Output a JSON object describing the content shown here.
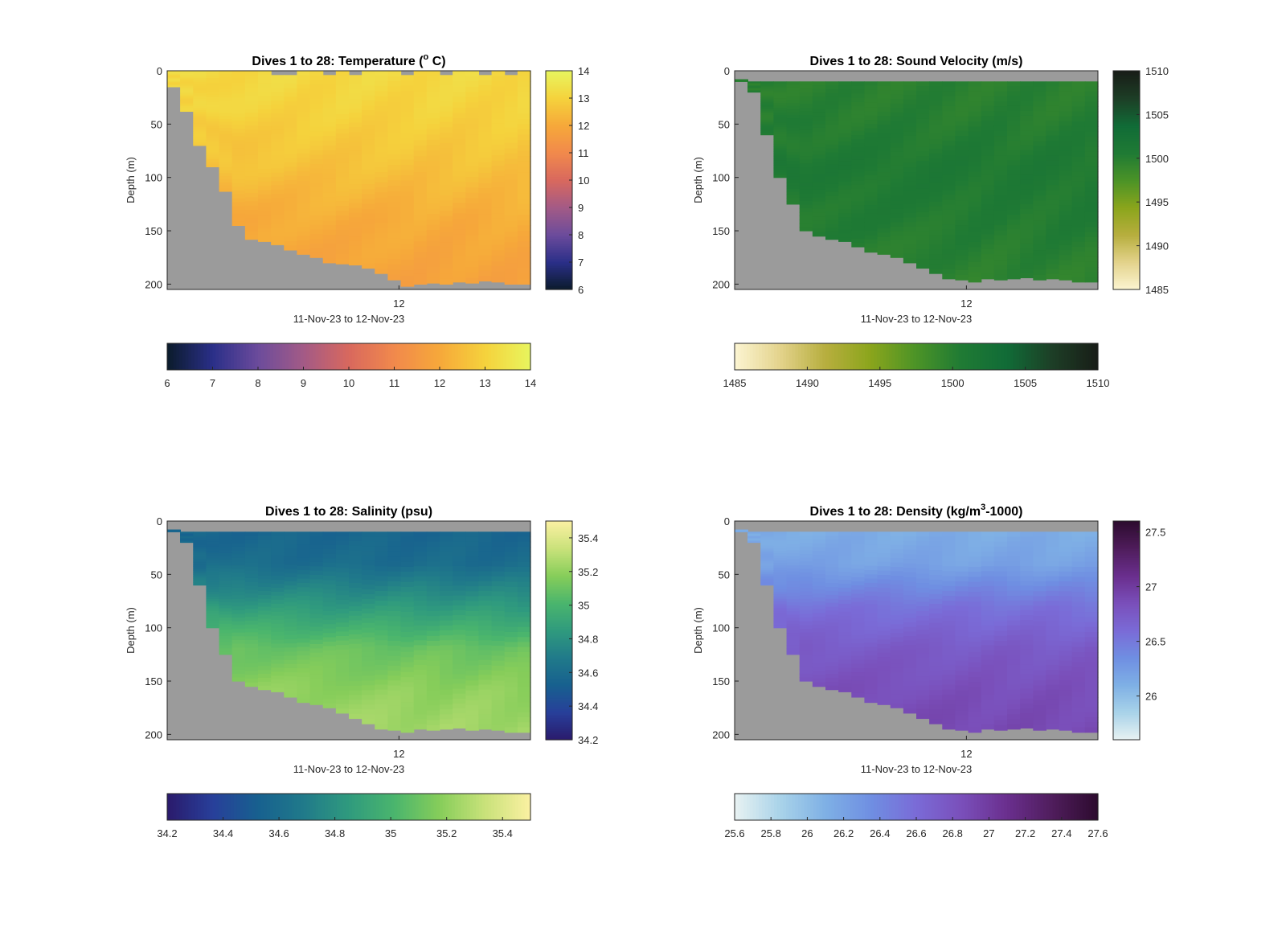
{
  "figure": {
    "background": "#ffffff",
    "mask_color": "#9b9b9b",
    "text_color": "#262626"
  },
  "chart_data": [
    {
      "id": "temperature",
      "type": "heatmap",
      "title": "Dives 1 to 28: Temperature (",
      "title_sup": "o",
      "title_post": " C)",
      "xlabel": "11-Nov-23 to 12-Nov-23",
      "ylabel": "Depth (m)",
      "x_ticks": [
        "12"
      ],
      "y_ticks": [
        0,
        50,
        100,
        150,
        200
      ],
      "ylim": [
        0,
        205
      ],
      "dives": 28,
      "colormap": [
        "#0b1b2b",
        "#2a2f88",
        "#6b4b9c",
        "#a35a86",
        "#d8685e",
        "#f1894c",
        "#f6a83a",
        "#f5d23c",
        "#e8f55e"
      ],
      "clim": [
        6,
        14
      ],
      "colorbar_ticks": [
        6,
        7,
        8,
        9,
        10,
        11,
        12,
        13,
        14
      ],
      "vertical_profile": [
        [
          0,
          13.2
        ],
        [
          40,
          13.0
        ],
        [
          90,
          12.6
        ],
        [
          140,
          12.1
        ],
        [
          200,
          11.8
        ]
      ],
      "seafloor_depth_m": [
        15,
        38,
        70,
        90,
        113,
        145,
        158,
        160,
        163,
        168,
        172,
        175,
        180,
        181,
        182,
        185,
        190,
        196,
        202,
        200,
        199,
        200,
        198,
        199,
        197,
        198,
        200,
        200
      ],
      "surface_gap_m": [
        0,
        0,
        0,
        0,
        0,
        0,
        0,
        0,
        4,
        4,
        0,
        0,
        4,
        0,
        4,
        0,
        0,
        0,
        4,
        0,
        0,
        4,
        0,
        0,
        4,
        0,
        4,
        0
      ]
    },
    {
      "id": "sound-velocity",
      "type": "heatmap",
      "title": "Dives 1 to 28: Sound Velocity (m/s)",
      "xlabel": "11-Nov-23 to 12-Nov-23",
      "ylabel": "Depth (m)",
      "x_ticks": [
        "12"
      ],
      "y_ticks": [
        0,
        50,
        100,
        150,
        200
      ],
      "ylim": [
        0,
        205
      ],
      "dives": 28,
      "colormap": [
        "#fcf5d2",
        "#e3d38c",
        "#b7ae3e",
        "#8aa51c",
        "#4b9327",
        "#1f7a34",
        "#116b37",
        "#1d3e26",
        "#181d17"
      ],
      "clim": [
        1485,
        1510
      ],
      "colorbar_ticks": [
        1485,
        1490,
        1495,
        1500,
        1505,
        1510
      ],
      "vertical_profile": [
        [
          0,
          1499.8
        ],
        [
          40,
          1500.0
        ],
        [
          90,
          1500.8
        ],
        [
          140,
          1500.4
        ],
        [
          200,
          1499.6
        ]
      ],
      "seafloor_depth_m": [
        8,
        20,
        60,
        100,
        125,
        150,
        155,
        158,
        160,
        165,
        170,
        172,
        175,
        180,
        185,
        190,
        195,
        196,
        198,
        195,
        196,
        195,
        194,
        196,
        195,
        196,
        198,
        198
      ],
      "surface_gap_m": [
        10,
        10,
        10,
        10,
        10,
        10,
        10,
        10,
        10,
        10,
        10,
        10,
        10,
        10,
        10,
        10,
        10,
        10,
        10,
        10,
        10,
        10,
        10,
        10,
        10,
        10,
        10,
        10
      ]
    },
    {
      "id": "salinity",
      "type": "heatmap",
      "title": "Dives 1 to 28: Salinity (psu)",
      "xlabel": "11-Nov-23 to 12-Nov-23",
      "ylabel": "Depth (m)",
      "x_ticks": [
        "12"
      ],
      "y_ticks": [
        0,
        50,
        100,
        150,
        200
      ],
      "ylim": [
        0,
        205
      ],
      "dives": 28,
      "colormap": [
        "#2a1a6b",
        "#283f9a",
        "#17608f",
        "#207a8a",
        "#2f9a7e",
        "#4ab56d",
        "#86cd5a",
        "#c9e27a",
        "#fbf0a2"
      ],
      "clim": [
        34.2,
        35.5
      ],
      "colorbar_ticks": [
        34.2,
        34.4,
        34.6,
        34.8,
        35,
        35.2,
        35.4
      ],
      "vertical_profile": [
        [
          0,
          34.55
        ],
        [
          40,
          34.6
        ],
        [
          80,
          34.85
        ],
        [
          120,
          35.1
        ],
        [
          160,
          35.2
        ],
        [
          200,
          35.25
        ]
      ],
      "seafloor_depth_m": [
        8,
        20,
        60,
        100,
        125,
        150,
        155,
        158,
        160,
        165,
        170,
        172,
        175,
        180,
        185,
        190,
        195,
        196,
        198,
        195,
        196,
        195,
        194,
        196,
        195,
        196,
        198,
        198
      ],
      "surface_gap_m": [
        10,
        10,
        10,
        10,
        10,
        10,
        10,
        10,
        10,
        10,
        10,
        10,
        10,
        10,
        10,
        10,
        10,
        10,
        10,
        10,
        10,
        10,
        10,
        10,
        10,
        10,
        10,
        10
      ]
    },
    {
      "id": "density",
      "type": "heatmap",
      "title": "Dives 1 to 28: Density (kg/m",
      "title_sup": "3",
      "title_post": "-1000)",
      "xlabel": "11-Nov-23 to 12-Nov-23",
      "ylabel": "Depth (m)",
      "x_ticks": [
        "12"
      ],
      "y_ticks": [
        0,
        50,
        100,
        150,
        200
      ],
      "ylim": [
        0,
        205
      ],
      "dives": 28,
      "colormap": [
        "#e8f2f2",
        "#a9d3e9",
        "#7fb0e5",
        "#6f8fe2",
        "#7a6bd7",
        "#7a4fba",
        "#6a2f8e",
        "#4f1d5c",
        "#2d0b2e"
      ],
      "clim": [
        25.6,
        27.6
      ],
      "colorbar_ticks": [
        26,
        26.5,
        27,
        27.5
      ],
      "colorbar_ticks_h": [
        25.6,
        25.8,
        26,
        26.2,
        26.4,
        26.6,
        26.8,
        27,
        27.2,
        27.4,
        27.6
      ],
      "vertical_profile": [
        [
          0,
          26.1
        ],
        [
          40,
          26.2
        ],
        [
          80,
          26.55
        ],
        [
          120,
          26.75
        ],
        [
          160,
          26.85
        ],
        [
          200,
          26.9
        ]
      ],
      "seafloor_depth_m": [
        8,
        20,
        60,
        100,
        125,
        150,
        155,
        158,
        160,
        165,
        170,
        172,
        175,
        180,
        185,
        190,
        195,
        196,
        198,
        195,
        196,
        195,
        194,
        196,
        195,
        196,
        198,
        198
      ],
      "surface_gap_m": [
        10,
        10,
        10,
        10,
        10,
        10,
        10,
        10,
        10,
        10,
        10,
        10,
        10,
        10,
        10,
        10,
        10,
        10,
        10,
        10,
        10,
        10,
        10,
        10,
        10,
        10,
        10,
        10
      ]
    }
  ]
}
